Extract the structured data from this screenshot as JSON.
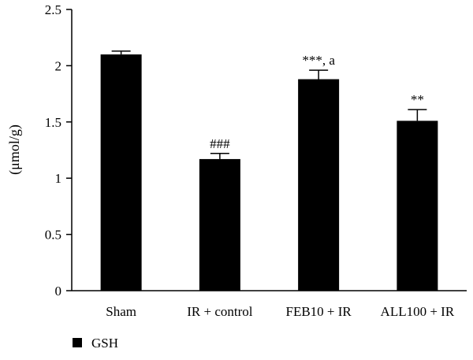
{
  "chart_data": {
    "type": "bar",
    "categories": [
      "Sham",
      "IR + control",
      "FEB10 + IR",
      "ALL100 + IR"
    ],
    "series": [
      {
        "name": "GSH",
        "values": [
          2.1,
          1.17,
          1.88,
          1.51
        ],
        "errors": [
          0.03,
          0.05,
          0.08,
          0.1
        ],
        "annotations": [
          "",
          "###",
          "***, a",
          "**"
        ]
      }
    ],
    "ylabel": "(μmol/g)",
    "ylim": [
      0,
      2.5
    ],
    "yticks": [
      0,
      0.5,
      1,
      1.5,
      2,
      2.5
    ],
    "ytick_labels": [
      "0",
      "0.5",
      "1",
      "1.5",
      "2",
      "2.5"
    ],
    "grid": false,
    "legend": "bottom-left",
    "colors": {
      "bar": "#000000",
      "axis": "#000000",
      "text": "#000000"
    }
  }
}
